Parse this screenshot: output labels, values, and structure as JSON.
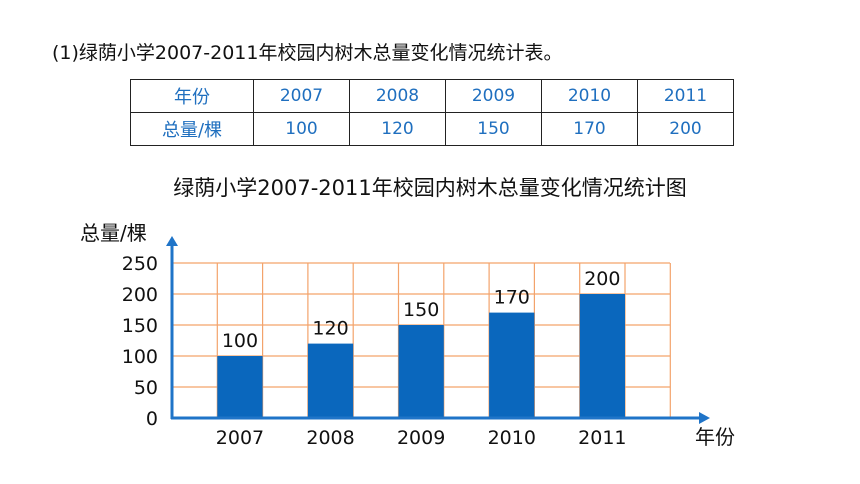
{
  "heading": "(1)绿荫小学2007-2011年校园内树木总量变化情况统计表。",
  "table": {
    "row_headers": [
      "年份",
      "总量/棵"
    ],
    "years": [
      "2007",
      "2008",
      "2009",
      "2010",
      "2011"
    ],
    "totals": [
      "100",
      "120",
      "150",
      "170",
      "200"
    ]
  },
  "chart_data": {
    "type": "bar",
    "title": "绿荫小学2007-2011年校园内树木总量变化情况统计图",
    "ylabel": "总量/棵",
    "xlabel": "年份",
    "categories": [
      "2007",
      "2008",
      "2009",
      "2010",
      "2011"
    ],
    "values": [
      100,
      120,
      150,
      170,
      200
    ],
    "ylim": [
      0,
      250
    ],
    "yticks": [
      0,
      50,
      100,
      150,
      200,
      250
    ],
    "grid": true,
    "colors": {
      "bar": "#0a67bd",
      "grid": "#f3a36b",
      "axis": "#1f74c8"
    }
  }
}
